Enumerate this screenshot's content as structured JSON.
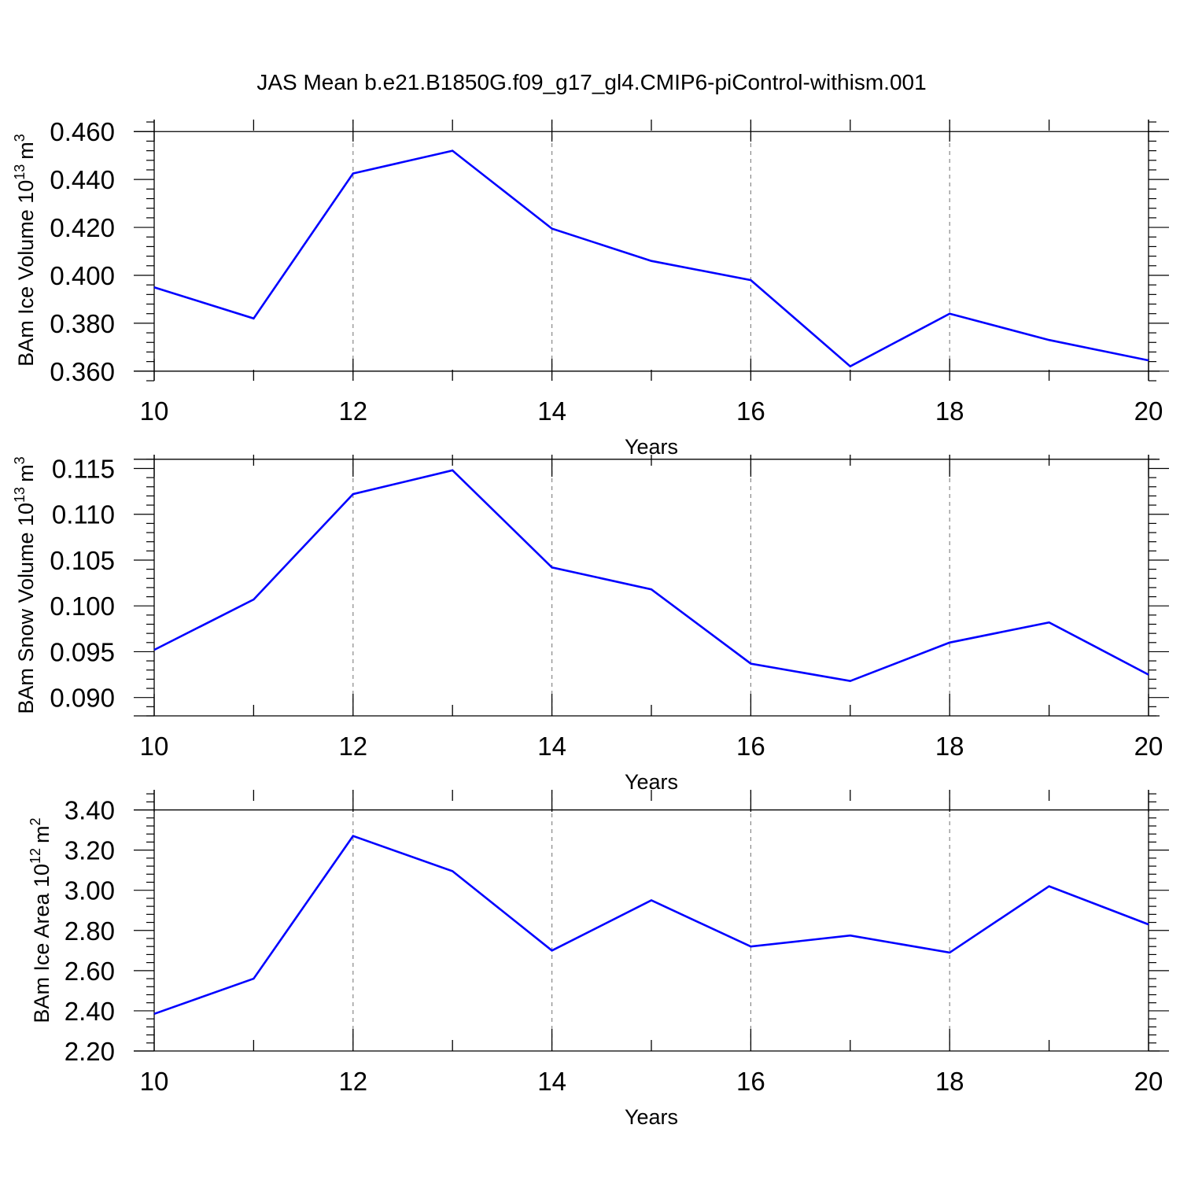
{
  "title": "JAS Mean b.e21.B1850G.f09_g17_gl4.CMIP6-piControl-withism.001",
  "colors": {
    "series": "#0000ff",
    "axis": "#000000",
    "grid": "#888888",
    "background": "#ffffff"
  },
  "chart_data": [
    {
      "type": "line",
      "title": "",
      "xlabel": "Years",
      "ylabel": "BAm Ice Volume 10",
      "ylabel_sup": "13",
      "ylabel_unit": "m",
      "ylabel_unit_sup": "3",
      "x": [
        10,
        11,
        12,
        13,
        14,
        15,
        16,
        17,
        18,
        19,
        20
      ],
      "series": [
        {
          "values": [
            0.395,
            0.382,
            0.4425,
            0.452,
            0.4195,
            0.406,
            0.398,
            0.362,
            0.384,
            0.373,
            0.3645
          ]
        }
      ],
      "xlim": [
        10,
        20
      ],
      "ylim": [
        0.356,
        0.465
      ],
      "xticks": [
        10,
        12,
        14,
        16,
        18,
        20
      ],
      "yticks": [
        0.36,
        0.38,
        0.4,
        0.42,
        0.44,
        0.46
      ],
      "ytick_labels": [
        "0.360",
        "0.380",
        "0.400",
        "0.420",
        "0.440",
        "0.460"
      ],
      "ref_lines": [
        0.36,
        0.46
      ],
      "grid": "dashed vertical at major x ticks"
    },
    {
      "type": "line",
      "title": "",
      "xlabel": "Years",
      "ylabel": "BAm Snow Volume 10",
      "ylabel_sup": "13",
      "ylabel_unit": "m",
      "ylabel_unit_sup": "3",
      "x": [
        10,
        11,
        12,
        13,
        14,
        15,
        16,
        17,
        18,
        19,
        20
      ],
      "series": [
        {
          "values": [
            0.0952,
            0.1007,
            0.1122,
            0.1148,
            0.1042,
            0.1018,
            0.0937,
            0.0918,
            0.096,
            0.0982,
            0.0925
          ]
        }
      ],
      "xlim": [
        10,
        20
      ],
      "ylim": [
        0.088,
        0.1165
      ],
      "xticks": [
        10,
        12,
        14,
        16,
        18,
        20
      ],
      "yticks": [
        0.09,
        0.095,
        0.1,
        0.105,
        0.11,
        0.115
      ],
      "ytick_labels": [
        "0.090",
        "0.095",
        "0.100",
        "0.105",
        "0.110",
        "0.115"
      ],
      "ref_lines": [
        0.088,
        0.116
      ],
      "grid": "dashed vertical at major x ticks"
    },
    {
      "type": "line",
      "title": "",
      "xlabel": "Years",
      "ylabel": "BAm Ice Area 10",
      "ylabel_sup": "12",
      "ylabel_unit": "m",
      "ylabel_unit_sup": "2",
      "x": [
        10,
        11,
        12,
        13,
        14,
        15,
        16,
        17,
        18,
        19,
        20
      ],
      "series": [
        {
          "values": [
            2.385,
            2.56,
            3.27,
            3.095,
            2.7,
            2.95,
            2.72,
            2.775,
            2.69,
            3.02,
            2.83
          ]
        }
      ],
      "xlim": [
        10,
        20
      ],
      "ylim": [
        2.2,
        3.5
      ],
      "xticks": [
        10,
        12,
        14,
        16,
        18,
        20
      ],
      "yticks": [
        2.2,
        2.4,
        2.6,
        2.8,
        3.0,
        3.2,
        3.4
      ],
      "ytick_labels": [
        "2.20",
        "2.40",
        "2.60",
        "2.80",
        "3.00",
        "3.20",
        "3.40"
      ],
      "ref_lines": [
        2.2,
        3.4
      ],
      "grid": "dashed vertical at major x ticks"
    }
  ]
}
